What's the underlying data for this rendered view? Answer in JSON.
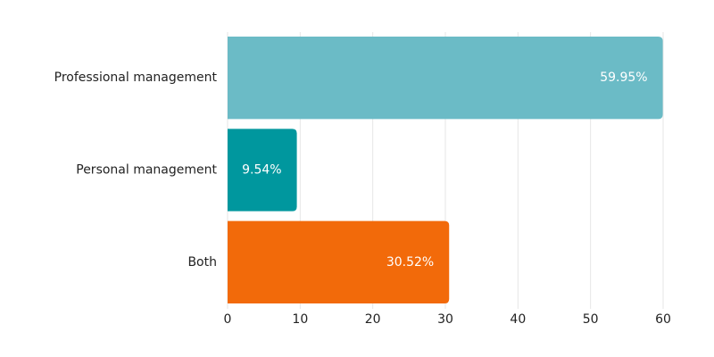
{
  "chart_data": {
    "type": "bar",
    "orientation": "horizontal",
    "categories": [
      "Professional management",
      "Personal management",
      "Both"
    ],
    "values": [
      59.95,
      9.54,
      30.52
    ],
    "value_labels": [
      "59.95%",
      "9.54%",
      "30.52%"
    ],
    "colors": [
      "#6bbbc6",
      "#00979e",
      "#f26a0a"
    ],
    "xlim": [
      0,
      60
    ],
    "xticks": [
      0,
      10,
      20,
      30,
      40,
      50,
      60
    ],
    "grid": true
  }
}
